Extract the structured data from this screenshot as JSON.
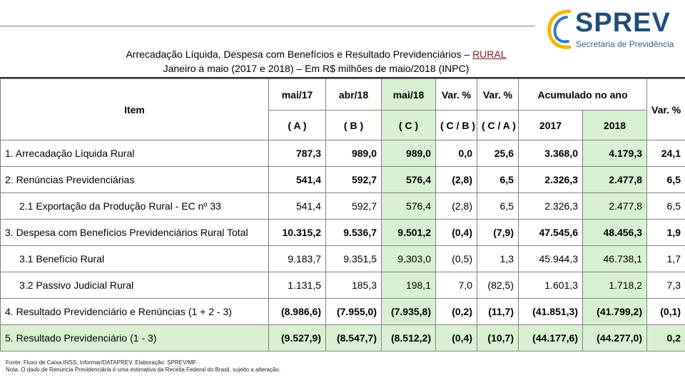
{
  "logo": {
    "name": "SPREV",
    "subtitle": "Secretaria de Previdência",
    "brand_color": "#1f4d7a",
    "accent_color": "#f2b705"
  },
  "title": {
    "line1_prefix": "Arrecadação Líquida, Despesa com Benefícios e Resultado Previdenciários – ",
    "line1_link": "RURAL",
    "line2": "Janeiro a maio (2017 e 2018) – Em R$ milhões de maio/2018 (INPC)"
  },
  "table": {
    "item_header": "Item",
    "col_headers": [
      "mai/17",
      "abr/18",
      "mai/18",
      "Var. %",
      "Var. %"
    ],
    "col_subheaders": [
      "( A )",
      "( B )",
      "( C )",
      "( C / B )",
      "( C / A )"
    ],
    "accum_header": "Acumulado no ano",
    "accum_years": [
      "2017",
      "2018"
    ],
    "var_header": "Var. %",
    "rows": [
      {
        "label": "1. Arrecadação Líquida Rural",
        "values": [
          "787,3",
          "989,0",
          "989,0",
          "0,0",
          "25,6",
          "3.368,0",
          "4.179,3",
          "24,1"
        ]
      },
      {
        "label": "2. Renúncias Previdenciárias",
        "values": [
          "541,4",
          "592,7",
          "576,4",
          "(2,8)",
          "6,5",
          "2.326,3",
          "2.477,8",
          "6,5"
        ]
      },
      {
        "label": "2.1 Exportação da Produção Rural - EC nº 33",
        "values": [
          "541,4",
          "592,7",
          "576,4",
          "(2,8)",
          "6,5",
          "2.326,3",
          "2.477,8",
          "6,5"
        ]
      },
      {
        "label": "3. Despesa com Benefícios Previdenciários Rural Total",
        "values": [
          "10.315,2",
          "9.536,7",
          "9.501,2",
          "(0,4)",
          "(7,9)",
          "47.545,6",
          "48.456,3",
          "1,9"
        ]
      },
      {
        "label": "3.1 Benefício Rural",
        "values": [
          "9.183,7",
          "9.351,5",
          "9.303,0",
          "(0,5)",
          "1,3",
          "45.944,3",
          "46.738,1",
          "1,7"
        ]
      },
      {
        "label": "3.2 Passivo Judicial Rural",
        "values": [
          "1.131,5",
          "185,3",
          "198,1",
          "7,0",
          "(82,5)",
          "1.601,3",
          "1.718,2",
          "7,3"
        ]
      },
      {
        "label": "4. Resultado Previdenciário e Renúncias (1 + 2 - 3)",
        "values": [
          "(8.986,6)",
          "(7.955,0)",
          "(7.935,8)",
          "(0,2)",
          "(11,7)",
          "(41.851,3)",
          "(41.799,2)",
          "(0,1)"
        ]
      },
      {
        "label": "5. Resultado Previdenciário (1 - 3)",
        "values": [
          "(9.527,9)",
          "(8.547,7)",
          "(8.512,2)",
          "(0,4)",
          "(10,7)",
          "(44.177,6)",
          "(44.277,0)",
          "0,2"
        ]
      }
    ]
  },
  "footnotes": {
    "source": "Fonte: Fluxo de Caixa INSS; Informar/DATAPREV. Elaboração: SPREV/MF.",
    "note": "Nota: O dado de Renúncia Previdenciária é uma estimativa da Receita Federal do Brasil, sujeito a alteração."
  }
}
